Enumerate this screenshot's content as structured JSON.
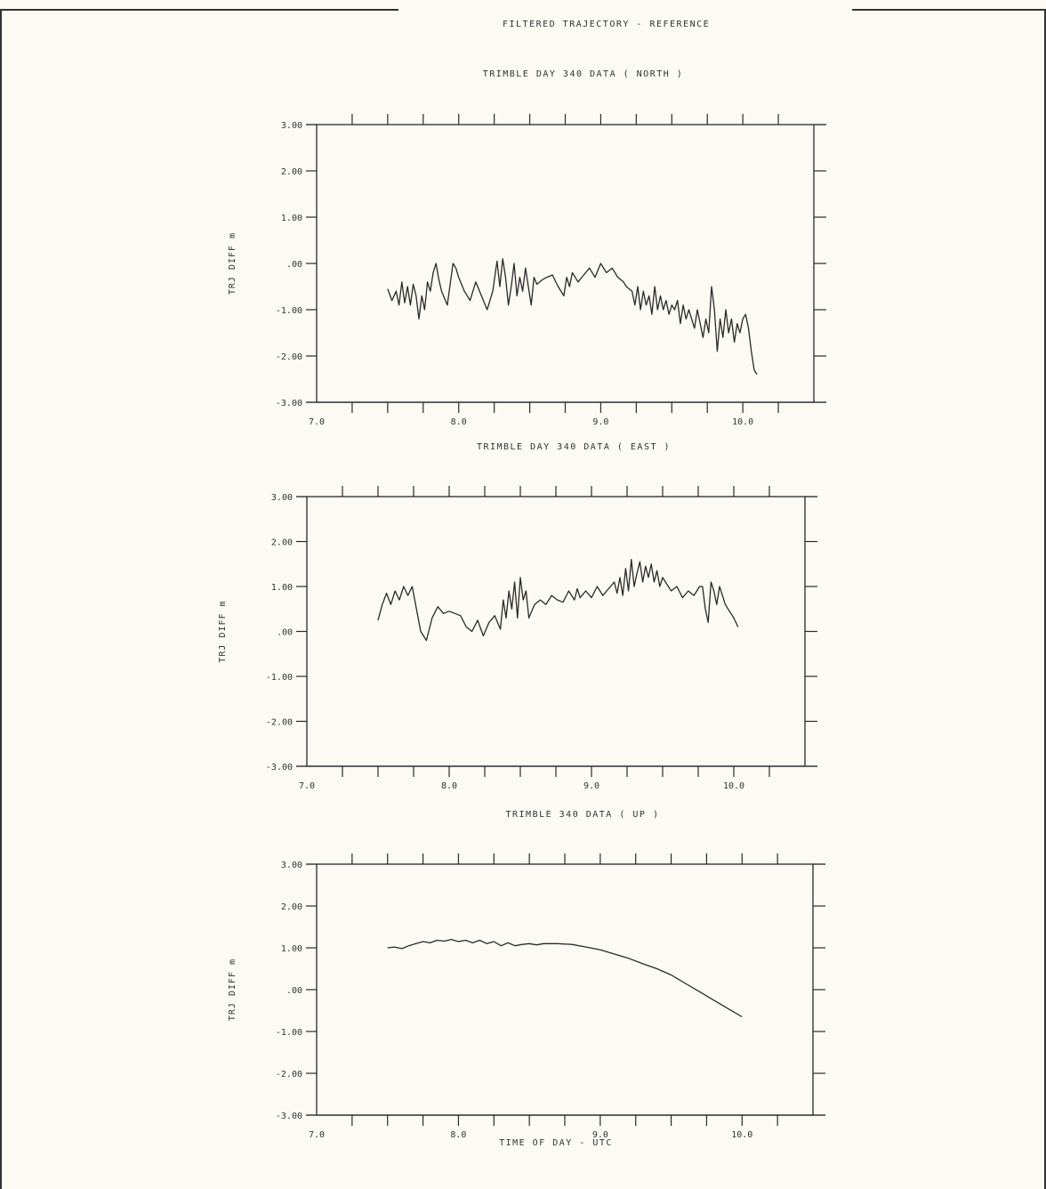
{
  "page": {
    "header_title": "FILTERED TRAJECTORY - REFERENCE",
    "background": "#fbfaf3",
    "ink": "#2a2a2a"
  },
  "chart_data": [
    {
      "type": "line",
      "title": "TRIMBLE DAY 340 DATA ( NORTH )",
      "ylabel": "TRJ DIFF m",
      "xlabel": "",
      "xlim": [
        7.0,
        10.5
      ],
      "ylim": [
        -3.0,
        3.0
      ],
      "x_ticks": [
        "7.0",
        "8.0",
        "9.0",
        "10.0"
      ],
      "y_ticks": [
        "3.00",
        "2.00",
        "1.00",
        ".00",
        "-1.00",
        "-2.00",
        "-3.00"
      ],
      "grid": false,
      "series": [
        {
          "x": [
            7.5,
            7.53,
            7.56,
            7.58,
            7.6,
            7.62,
            7.64,
            7.66,
            7.68,
            7.7,
            7.72,
            7.74,
            7.76,
            7.78,
            7.8,
            7.82,
            7.84,
            7.86,
            7.88,
            7.92,
            7.96,
            7.98,
            8.0,
            8.04,
            8.08,
            8.12,
            8.16,
            8.2,
            8.24,
            8.27,
            8.29,
            8.31,
            8.33,
            8.35,
            8.37,
            8.39,
            8.41,
            8.43,
            8.45,
            8.47,
            8.49,
            8.51,
            8.53,
            8.55,
            8.57,
            8.59,
            8.62,
            8.66,
            8.7,
            8.74,
            8.76,
            8.78,
            8.8,
            8.84,
            8.88,
            8.92,
            8.96,
            9.0,
            9.04,
            9.08,
            9.12,
            9.16,
            9.18,
            9.22,
            9.24,
            9.26,
            9.28,
            9.3,
            9.32,
            9.34,
            9.36,
            9.38,
            9.4,
            9.42,
            9.44,
            9.46,
            9.48,
            9.5,
            9.52,
            9.54,
            9.56,
            9.58,
            9.6,
            9.62,
            9.64,
            9.66,
            9.68,
            9.7,
            9.72,
            9.74,
            9.76,
            9.78,
            9.8,
            9.82,
            9.84,
            9.86,
            9.88,
            9.9,
            9.92,
            9.94,
            9.96,
            9.98,
            10.0,
            10.02,
            10.04,
            10.06,
            10.08,
            10.1
          ],
          "y": [
            -0.55,
            -0.8,
            -0.6,
            -0.9,
            -0.4,
            -0.85,
            -0.5,
            -0.9,
            -0.45,
            -0.7,
            -1.2,
            -0.7,
            -1.0,
            -0.4,
            -0.6,
            -0.2,
            0.0,
            -0.35,
            -0.6,
            -0.9,
            0.0,
            -0.1,
            -0.3,
            -0.6,
            -0.8,
            -0.4,
            -0.7,
            -1.0,
            -0.6,
            0.05,
            -0.5,
            0.1,
            -0.3,
            -0.9,
            -0.5,
            0.0,
            -0.7,
            -0.3,
            -0.6,
            -0.1,
            -0.5,
            -0.9,
            -0.3,
            -0.45,
            -0.4,
            -0.35,
            -0.3,
            -0.25,
            -0.5,
            -0.7,
            -0.3,
            -0.5,
            -0.2,
            -0.4,
            -0.25,
            -0.1,
            -0.3,
            0.0,
            -0.2,
            -0.1,
            -0.3,
            -0.4,
            -0.5,
            -0.6,
            -0.9,
            -0.5,
            -1.0,
            -0.6,
            -0.9,
            -0.7,
            -1.1,
            -0.5,
            -1.0,
            -0.7,
            -1.0,
            -0.8,
            -1.1,
            -0.9,
            -1.0,
            -0.8,
            -1.3,
            -0.9,
            -1.2,
            -1.0,
            -1.2,
            -1.4,
            -1.0,
            -1.3,
            -1.6,
            -1.2,
            -1.5,
            -0.5,
            -1.0,
            -1.9,
            -1.2,
            -1.6,
            -1.0,
            -1.5,
            -1.2,
            -1.7,
            -1.3,
            -1.5,
            -1.2,
            -1.1,
            -1.4,
            -1.9,
            -2.3,
            -2.4
          ]
        }
      ]
    },
    {
      "type": "line",
      "title": "TRIMBLE DAY 340 DATA ( EAST )",
      "ylabel": "TRJ DIFF m",
      "xlabel": "",
      "xlim": [
        7.0,
        10.5
      ],
      "ylim": [
        -3.0,
        3.0
      ],
      "x_ticks": [
        "7.0",
        "8.0",
        "9.0",
        "10.0"
      ],
      "y_ticks": [
        "3.00",
        "2.00",
        "1.00",
        ".00",
        "-1.00",
        "-2.00",
        "-3.00"
      ],
      "grid": false,
      "series": [
        {
          "x": [
            7.5,
            7.53,
            7.56,
            7.59,
            7.62,
            7.65,
            7.68,
            7.71,
            7.74,
            7.77,
            7.8,
            7.84,
            7.88,
            7.92,
            7.96,
            8.0,
            8.04,
            8.08,
            8.12,
            8.16,
            8.2,
            8.24,
            8.28,
            8.32,
            8.36,
            8.38,
            8.4,
            8.42,
            8.44,
            8.46,
            8.48,
            8.5,
            8.52,
            8.54,
            8.56,
            8.6,
            8.64,
            8.68,
            8.72,
            8.76,
            8.8,
            8.84,
            8.88,
            8.9,
            8.92,
            8.96,
            9.0,
            9.04,
            9.08,
            9.12,
            9.16,
            9.18,
            9.2,
            9.22,
            9.24,
            9.26,
            9.28,
            9.3,
            9.32,
            9.34,
            9.36,
            9.38,
            9.4,
            9.42,
            9.44,
            9.46,
            9.48,
            9.5,
            9.52,
            9.56,
            9.6,
            9.64,
            9.68,
            9.72,
            9.76,
            9.78,
            9.8,
            9.82,
            9.84,
            9.86,
            9.88,
            9.9,
            9.92,
            9.94,
            9.96,
            9.98,
            10.0,
            10.03
          ],
          "y": [
            0.25,
            0.6,
            0.85,
            0.6,
            0.9,
            0.7,
            1.0,
            0.8,
            1.0,
            0.5,
            0.0,
            -0.2,
            0.3,
            0.55,
            0.4,
            0.45,
            0.4,
            0.35,
            0.1,
            0.0,
            0.25,
            -0.1,
            0.2,
            0.35,
            0.05,
            0.7,
            0.3,
            0.9,
            0.5,
            1.1,
            0.3,
            1.2,
            0.7,
            0.9,
            0.3,
            0.6,
            0.7,
            0.6,
            0.8,
            0.7,
            0.65,
            0.9,
            0.7,
            0.95,
            0.75,
            0.9,
            0.75,
            1.0,
            0.8,
            0.95,
            1.1,
            0.85,
            1.2,
            0.8,
            1.4,
            0.9,
            1.6,
            1.0,
            1.3,
            1.55,
            1.1,
            1.45,
            1.2,
            1.5,
            1.1,
            1.35,
            1.0,
            1.2,
            1.1,
            0.9,
            1.0,
            0.75,
            0.9,
            0.8,
            1.0,
            1.0,
            0.5,
            0.2,
            1.1,
            0.9,
            0.6,
            1.0,
            0.8,
            0.6,
            0.5,
            0.4,
            0.3,
            0.1
          ]
        }
      ]
    },
    {
      "type": "line",
      "title": "TRIMBLE 340 DATA ( UP )",
      "ylabel": "TRJ DIFF m",
      "xlabel": "TIME OF DAY - UTC",
      "xlim": [
        7.0,
        10.5
      ],
      "ylim": [
        -3.0,
        3.0
      ],
      "x_ticks": [
        "7.0",
        "8.0",
        "9.0",
        "10.0"
      ],
      "y_ticks": [
        "3.00",
        "2.00",
        "1.00",
        ".00",
        "-1.00",
        "-2.00",
        "-3.00"
      ],
      "grid": false,
      "series": [
        {
          "x": [
            7.5,
            7.55,
            7.6,
            7.65,
            7.7,
            7.75,
            7.8,
            7.85,
            7.9,
            7.95,
            8.0,
            8.05,
            8.1,
            8.15,
            8.2,
            8.25,
            8.3,
            8.35,
            8.4,
            8.45,
            8.5,
            8.55,
            8.6,
            8.7,
            8.8,
            8.9,
            9.0,
            9.1,
            9.2,
            9.3,
            9.4,
            9.5,
            9.6,
            9.7,
            9.8,
            9.9,
            10.0
          ],
          "y": [
            1.0,
            1.02,
            0.98,
            1.05,
            1.1,
            1.15,
            1.12,
            1.18,
            1.16,
            1.2,
            1.15,
            1.18,
            1.12,
            1.18,
            1.1,
            1.15,
            1.05,
            1.12,
            1.05,
            1.08,
            1.1,
            1.07,
            1.1,
            1.1,
            1.08,
            1.02,
            0.95,
            0.85,
            0.75,
            0.62,
            0.5,
            0.35,
            0.15,
            -0.05,
            -0.25,
            -0.45,
            -0.65
          ]
        }
      ]
    }
  ]
}
